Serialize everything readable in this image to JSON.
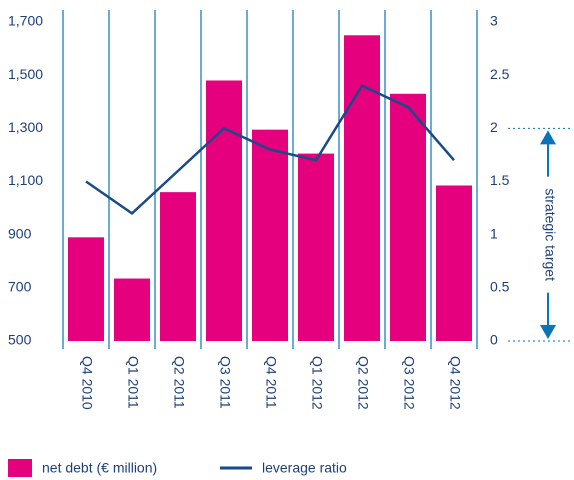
{
  "chart_data": {
    "type": "bar_line",
    "categories": [
      "Q4 2010",
      "Q1 2011",
      "Q2 2011",
      "Q3 2011",
      "Q4 2011",
      "Q1 2012",
      "Q2 2012",
      "Q3 2012",
      "Q4 2012"
    ],
    "series": [
      {
        "name": "net debt (€ million)",
        "color": "#e5007e",
        "values": [
          890,
          735,
          1060,
          1480,
          1295,
          1205,
          1650,
          1430,
          1085
        ]
      },
      {
        "name": "leverage ratio",
        "color": "#1a4a8a",
        "axis": "y2",
        "values": [
          1.5,
          1.2,
          1.6,
          2.0,
          1.8,
          1.7,
          2.4,
          2.2,
          1.7
        ]
      }
    ],
    "ylim": [
      500,
      1700
    ],
    "yticks": [
      {
        "value": 500,
        "label": "500"
      },
      {
        "value": 700,
        "label": "700"
      },
      {
        "value": 900,
        "label": "900"
      },
      {
        "value": 1100,
        "label": "1,100"
      },
      {
        "value": 1300,
        "label": "1,300"
      },
      {
        "value": 1500,
        "label": "1,500"
      },
      {
        "value": 1700,
        "label": "1,700"
      }
    ],
    "y2lim": [
      0,
      3
    ],
    "y2ticks": [
      0,
      0.5,
      1,
      1.5,
      2,
      2.5,
      3
    ],
    "annotation": {
      "text": "strategic target",
      "range": [
        0,
        2
      ]
    },
    "grid": true
  }
}
